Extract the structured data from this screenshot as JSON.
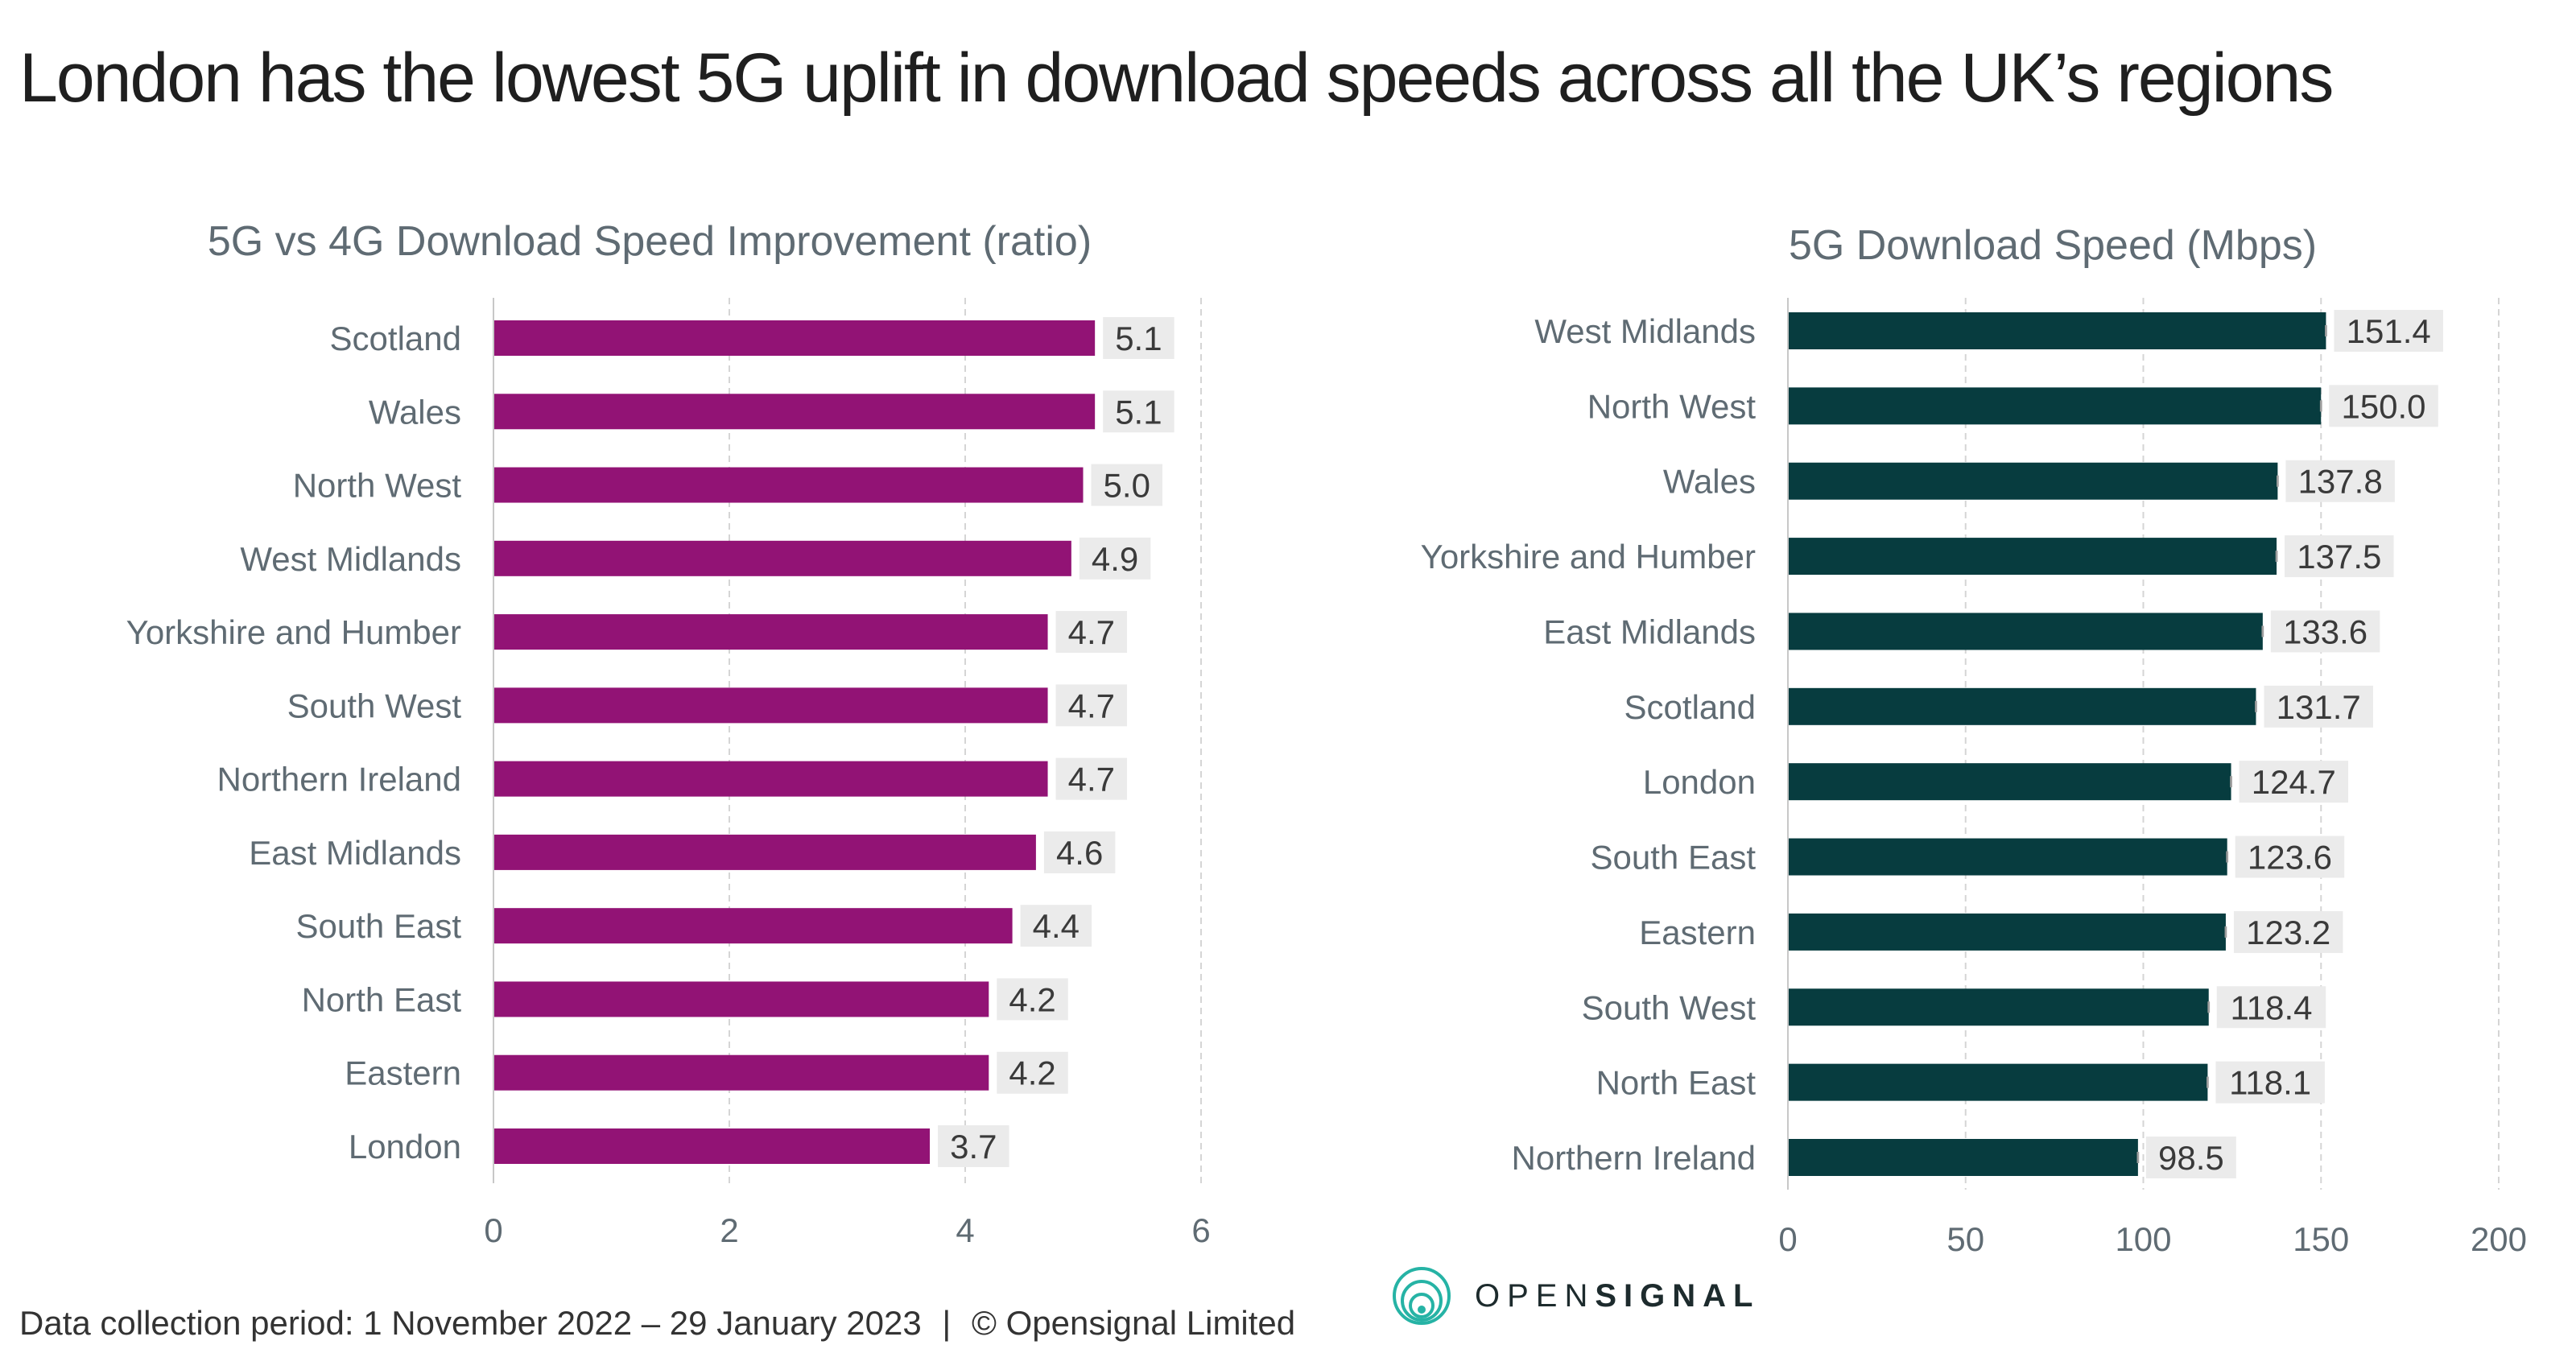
{
  "title": "London has the lowest 5G uplift in download speeds across all the UK’s regions",
  "footer": {
    "period": "Data collection period: 1 November 2022 – 29 January 2023",
    "separator": "|",
    "copyright": "© Opensignal Limited"
  },
  "logo": {
    "prefix": "OPEN",
    "suffix": "SIGNAL",
    "icon": "opensignal-logo-icon"
  },
  "colors": {
    "ratio_bar": "#921375",
    "speed_bar": "#073c3f",
    "label_bg": "#ebebeb",
    "axis_text": "#5f6b73"
  },
  "chart_data": [
    {
      "type": "bar",
      "orientation": "horizontal",
      "title": "5G vs 4G Download Speed Improvement (ratio)",
      "categories": [
        "Scotland",
        "Wales",
        "North West",
        "West Midlands",
        "Yorkshire and Humber",
        "South West",
        "Northern Ireland",
        "East Midlands",
        "South East",
        "North East",
        "Eastern",
        "London"
      ],
      "values": [
        5.1,
        5.1,
        5.0,
        4.9,
        4.7,
        4.7,
        4.7,
        4.6,
        4.4,
        4.2,
        4.2,
        3.7
      ],
      "value_labels": [
        "5.1",
        "5.1",
        "5.0",
        "4.9",
        "4.7",
        "4.7",
        "4.7",
        "4.6",
        "4.4",
        "4.2",
        "4.2",
        "3.7"
      ],
      "xlim": [
        0,
        6
      ],
      "ticks": [
        0,
        2,
        4,
        6
      ],
      "tick_labels": [
        "0",
        "2",
        "4",
        "6"
      ],
      "grid": "vertical dashed",
      "error_bars": false,
      "color": "#921375"
    },
    {
      "type": "bar",
      "orientation": "horizontal",
      "title": "5G Download Speed (Mbps)",
      "categories": [
        "West Midlands",
        "North West",
        "Wales",
        "Yorkshire and Humber",
        "East Midlands",
        "Scotland",
        "London",
        "South East",
        "Eastern",
        "South West",
        "North East",
        "Northern Ireland"
      ],
      "values": [
        151.4,
        150.0,
        137.8,
        137.5,
        133.6,
        131.7,
        124.7,
        123.6,
        123.2,
        118.4,
        118.1,
        98.5
      ],
      "value_labels": [
        "151.4",
        "150.0",
        "137.8",
        "137.5",
        "133.6",
        "131.7",
        "124.7",
        "123.6",
        "123.2",
        "118.4",
        "118.1",
        "98.5"
      ],
      "xlim": [
        0,
        200
      ],
      "ticks": [
        0,
        50,
        100,
        150,
        200
      ],
      "tick_labels": [
        "0",
        "50",
        "100",
        "150",
        "200"
      ],
      "grid": "vertical dashed",
      "error_bars": true,
      "color": "#073c3f"
    }
  ]
}
